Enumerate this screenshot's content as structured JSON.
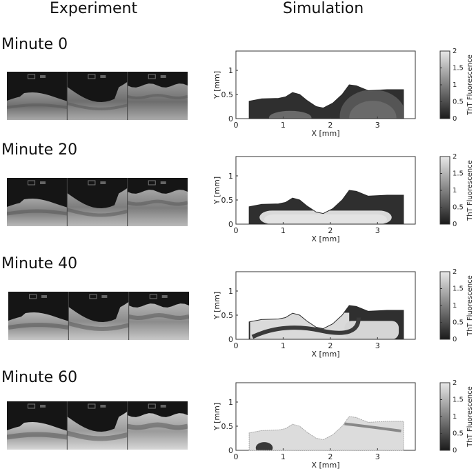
{
  "headers": {
    "experiment": "Experiment",
    "simulation": "Simulation"
  },
  "rows": [
    {
      "label": "Minute 0",
      "phase": 0
    },
    {
      "label": "Minute 20",
      "phase": 1
    },
    {
      "label": "Minute 40",
      "phase": 2
    },
    {
      "label": "Minute 60",
      "phase": 3
    }
  ],
  "plot_text": {
    "xlabel": "X [mm]",
    "ylabel": "Y [mm]",
    "colorbar_label": "ThT Fluorescence"
  },
  "chart_data": {
    "type": "heatmap",
    "xlabel": "X [mm]",
    "ylabel": "Y [mm]",
    "xlim": [
      0,
      3.8
    ],
    "ylim": [
      0,
      1.4
    ],
    "xticks": [
      "0",
      "1",
      "2",
      "3"
    ],
    "yticks": [
      "0",
      "0.5",
      "1"
    ],
    "colorbar": {
      "label": "ThT Fluorescence",
      "range": [
        0,
        2
      ],
      "ticks": [
        "0",
        "0.5",
        "1",
        "1.5",
        "2"
      ]
    },
    "boundary": [
      [
        0.28,
        0
      ],
      [
        0.28,
        0.36
      ],
      [
        0.55,
        0.41
      ],
      [
        0.9,
        0.42
      ],
      [
        1.05,
        0.45
      ],
      [
        1.2,
        0.54
      ],
      [
        1.35,
        0.5
      ],
      [
        1.5,
        0.38
      ],
      [
        1.7,
        0.25
      ],
      [
        1.85,
        0.22
      ],
      [
        2.05,
        0.32
      ],
      [
        2.25,
        0.5
      ],
      [
        2.4,
        0.7
      ],
      [
        2.55,
        0.68
      ],
      [
        2.8,
        0.58
      ],
      [
        3.2,
        0.6
      ],
      [
        3.55,
        0.6
      ],
      [
        3.55,
        0
      ]
    ]
  }
}
